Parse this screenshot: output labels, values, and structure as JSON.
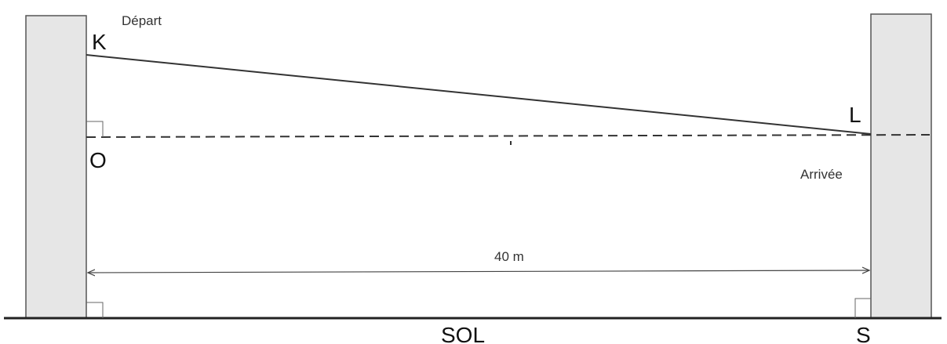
{
  "diagram": {
    "labels": {
      "start": "Départ",
      "arrival": "Arrivée",
      "point_k": "K",
      "point_l": "L",
      "point_o": "O",
      "point_s": "S",
      "ground": "SOL"
    },
    "dimension": {
      "distance_text": "40 m"
    },
    "colors": {
      "pillar_fill": "#e6e6e6",
      "stroke": "#333333"
    }
  }
}
